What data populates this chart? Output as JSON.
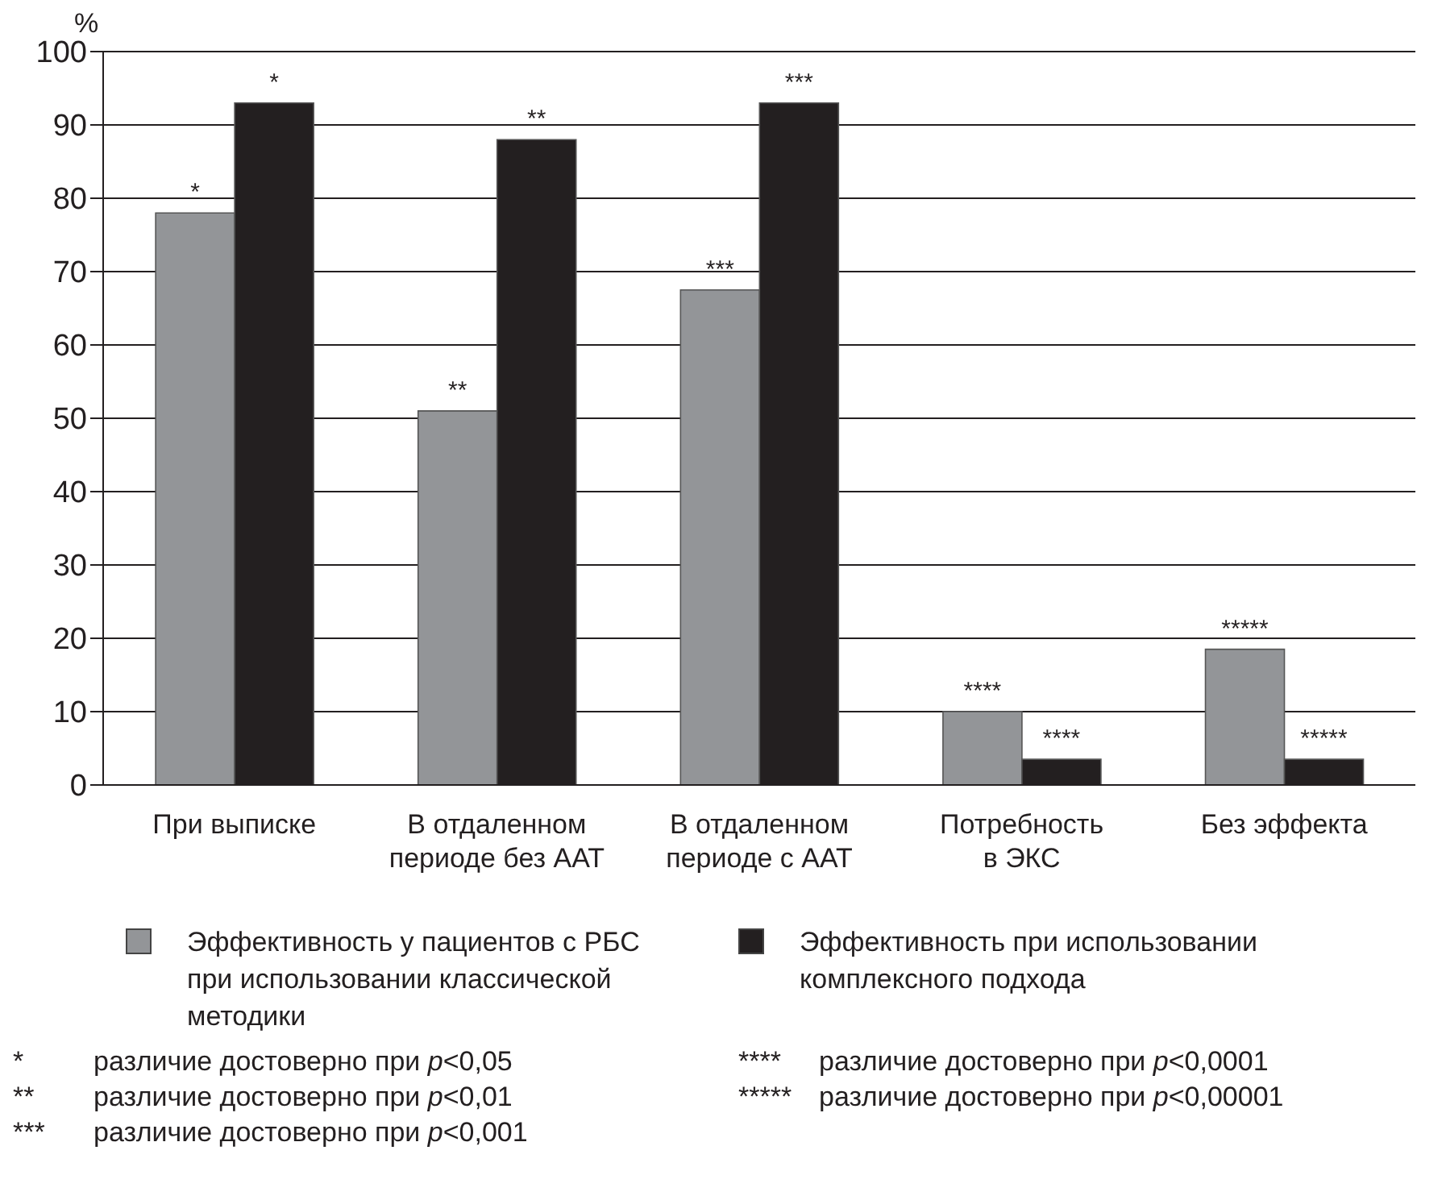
{
  "chart_data": {
    "type": "bar",
    "ylabel": "%",
    "categories": [
      "При выписке",
      "В отдаленном периоде без ААТ",
      "В отдаленном периоде с ААТ",
      "Потребность в ЭКС",
      "Без эффекта"
    ],
    "series": [
      {
        "name": "Эффективность у пациентов с РБС при использовании классической методики",
        "color": "#939598",
        "values": [
          78,
          51,
          67.5,
          10,
          18.5
        ],
        "value_labels": [
          "*",
          "**",
          "***",
          "****",
          "*****"
        ]
      },
      {
        "name": "Эффективность при использовании комплексного подхода",
        "color": "#231f20",
        "values": [
          93,
          88,
          93,
          3.5,
          3.5
        ],
        "value_labels": [
          "*",
          "**",
          "***",
          "****",
          "*****"
        ]
      }
    ],
    "ylim": [
      0,
      100
    ],
    "yticks": [
      0,
      10,
      20,
      30,
      40,
      50,
      60,
      70,
      80,
      90,
      100
    ],
    "grid": "y",
    "legend": "bottom",
    "annotations": [
      "* различие достоверно при p<0,05",
      "** различие достоверно при p<0,01",
      "*** различие достоверно при p<0,001",
      "**** различие достоверно при p<0,0001",
      "***** различие достоверно при p<0,00001"
    ]
  }
}
